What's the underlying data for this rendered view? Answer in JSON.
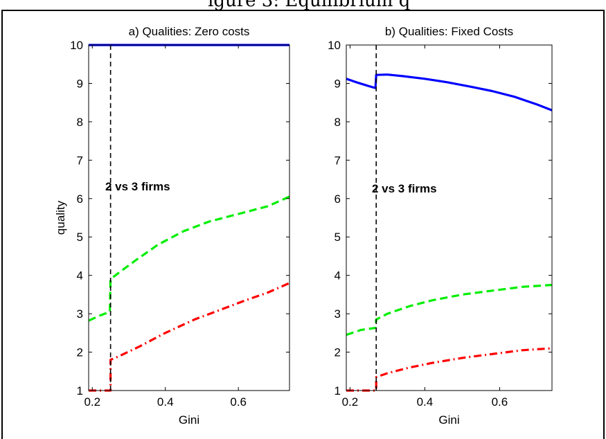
{
  "caption_fragment": "igure 3: Equilibrium q",
  "chart_data": [
    {
      "type": "line",
      "title": "a) Qualities: Zero costs",
      "xlabel": "Gini",
      "ylabel": "quality",
      "xlim": [
        0.19,
        0.74
      ],
      "ylim": [
        1,
        10
      ],
      "xticks": [
        "0.2",
        "0.4",
        "0.6"
      ],
      "xtick_values": [
        0.2,
        0.4,
        0.6
      ],
      "yticks": [
        "1",
        "2",
        "3",
        "4",
        "5",
        "6",
        "7",
        "8",
        "9",
        "10"
      ],
      "ytick_values": [
        1,
        2,
        3,
        4,
        5,
        6,
        7,
        8,
        9,
        10
      ],
      "grid": false,
      "annotation": {
        "text": "2 vs 3 firms",
        "x": 0.25,
        "y": 6.1
      },
      "threshold_x": 0.25,
      "series": [
        {
          "color": "#0000ff",
          "style": "solid",
          "x": [
            0.19,
            0.74
          ],
          "y": [
            10,
            10
          ]
        },
        {
          "color": "#00ee00",
          "style": "dashed",
          "x": [
            0.19,
            0.22,
            0.248,
            0.25,
            0.27,
            0.32,
            0.38,
            0.45,
            0.52,
            0.6,
            0.68,
            0.74
          ],
          "y": [
            2.82,
            2.95,
            3.05,
            3.9,
            4.05,
            4.4,
            4.8,
            5.15,
            5.4,
            5.6,
            5.8,
            6.05
          ]
        },
        {
          "color": "#ff0000",
          "style": "dashdot",
          "x": [
            0.19,
            0.235,
            0.25,
            0.25,
            0.27,
            0.33,
            0.4,
            0.48,
            0.55,
            0.62,
            0.68,
            0.74
          ],
          "y": [
            1.0,
            1.0,
            1.0,
            1.8,
            1.88,
            2.15,
            2.5,
            2.85,
            3.1,
            3.35,
            3.55,
            3.8
          ]
        }
      ]
    },
    {
      "type": "line",
      "title": "b) Qualities: Fixed Costs",
      "xlabel": "Gini",
      "ylabel": "",
      "xlim": [
        0.19,
        0.74
      ],
      "ylim": [
        1,
        10
      ],
      "xticks": [
        "0.2",
        "0.4",
        "0.6"
      ],
      "xtick_values": [
        0.2,
        0.4,
        0.6
      ],
      "yticks": [
        "1",
        "2",
        "3",
        "4",
        "5",
        "6",
        "7",
        "8",
        "9",
        "10"
      ],
      "ytick_values": [
        1,
        2,
        3,
        4,
        5,
        6,
        7,
        8,
        9,
        10
      ],
      "grid": false,
      "annotation": {
        "text": "2 vs 3 firms",
        "x": 0.25,
        "y": 6.2
      },
      "threshold_x": 0.27,
      "series": [
        {
          "color": "#0000ff",
          "style": "solid",
          "x": [
            0.19,
            0.22,
            0.25,
            0.268,
            0.27,
            0.3,
            0.34,
            0.4,
            0.46,
            0.52,
            0.58,
            0.64,
            0.7,
            0.74
          ],
          "y": [
            9.12,
            9.02,
            8.93,
            8.88,
            9.22,
            9.23,
            9.19,
            9.12,
            9.03,
            8.92,
            8.8,
            8.65,
            8.45,
            8.3
          ]
        },
        {
          "color": "#00ee00",
          "style": "dashed",
          "x": [
            0.19,
            0.23,
            0.268,
            0.27,
            0.3,
            0.36,
            0.42,
            0.5,
            0.58,
            0.66,
            0.74
          ],
          "y": [
            2.45,
            2.58,
            2.63,
            2.85,
            3.0,
            3.2,
            3.35,
            3.5,
            3.6,
            3.7,
            3.75
          ]
        },
        {
          "color": "#ff0000",
          "style": "dashdot",
          "x": [
            0.19,
            0.23,
            0.27,
            0.27,
            0.3,
            0.36,
            0.42,
            0.5,
            0.58,
            0.66,
            0.74
          ],
          "y": [
            1.0,
            1.0,
            1.0,
            1.35,
            1.45,
            1.6,
            1.72,
            1.85,
            1.95,
            2.05,
            2.1
          ]
        }
      ]
    }
  ]
}
